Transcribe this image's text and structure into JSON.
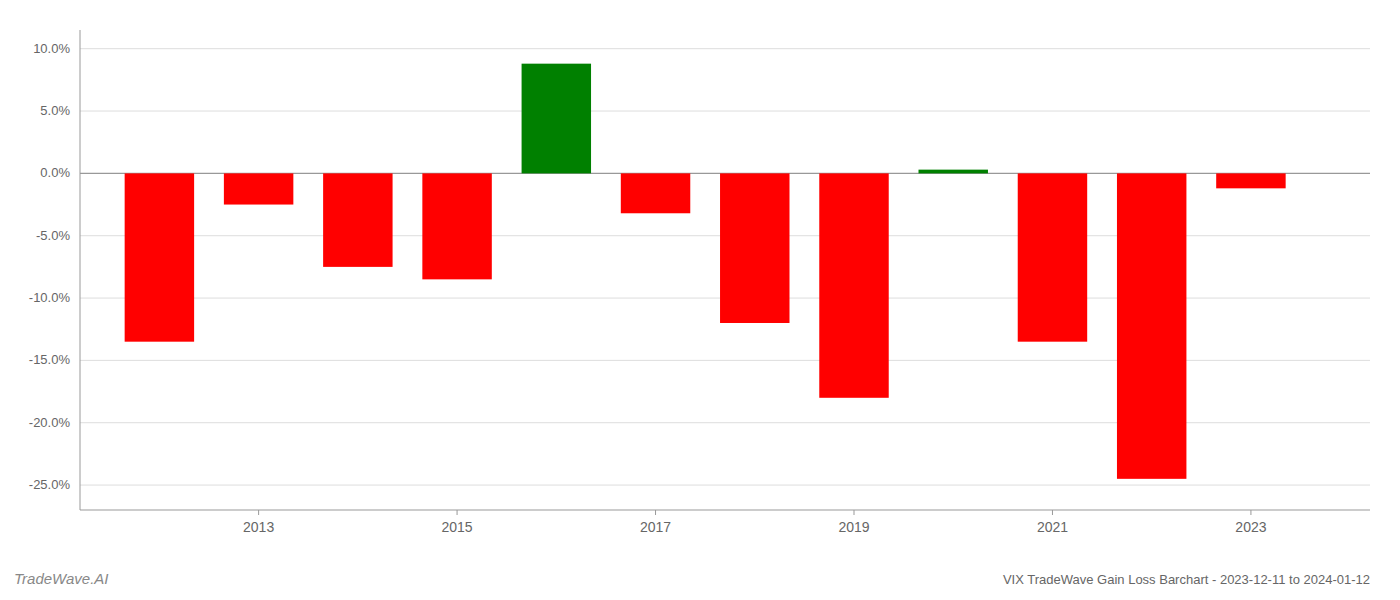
{
  "chart_data": {
    "type": "bar",
    "title": "VIX TradeWave Gain Loss Barchart - 2023-12-11 to 2024-01-12",
    "annotations": [
      "TradeWave.AI"
    ],
    "x": [
      2012,
      2013,
      2014,
      2015,
      2016,
      2017,
      2018,
      2019,
      2020,
      2021,
      2022,
      2023
    ],
    "values": [
      -13.5,
      -2.5,
      -7.5,
      -8.5,
      8.8,
      -3.2,
      -12.0,
      -18.0,
      0.3,
      -13.5,
      -24.5,
      -1.2
    ],
    "colors": [
      "#ff0000",
      "#ff0000",
      "#ff0000",
      "#ff0000",
      "#008000",
      "#ff0000",
      "#ff0000",
      "#ff0000",
      "#008000",
      "#ff0000",
      "#ff0000",
      "#ff0000"
    ],
    "xlim": [
      2011.2,
      2024.2
    ],
    "xticks": [
      2013,
      2015,
      2017,
      2019,
      2021,
      2023
    ],
    "ylim": [
      -27,
      11.5
    ],
    "yticks": [
      {
        "value": -25.0,
        "label": "-25.0%"
      },
      {
        "value": -20.0,
        "label": "-20.0%"
      },
      {
        "value": -15.0,
        "label": "-15.0%"
      },
      {
        "value": -10.0,
        "label": "-10.0%"
      },
      {
        "value": -5.0,
        "label": "-5.0%"
      },
      {
        "value": 0.0,
        "label": "0.0%"
      },
      {
        "value": 5.0,
        "label": "5.0%"
      },
      {
        "value": 10.0,
        "label": "10.0%"
      }
    ],
    "grid": true
  }
}
